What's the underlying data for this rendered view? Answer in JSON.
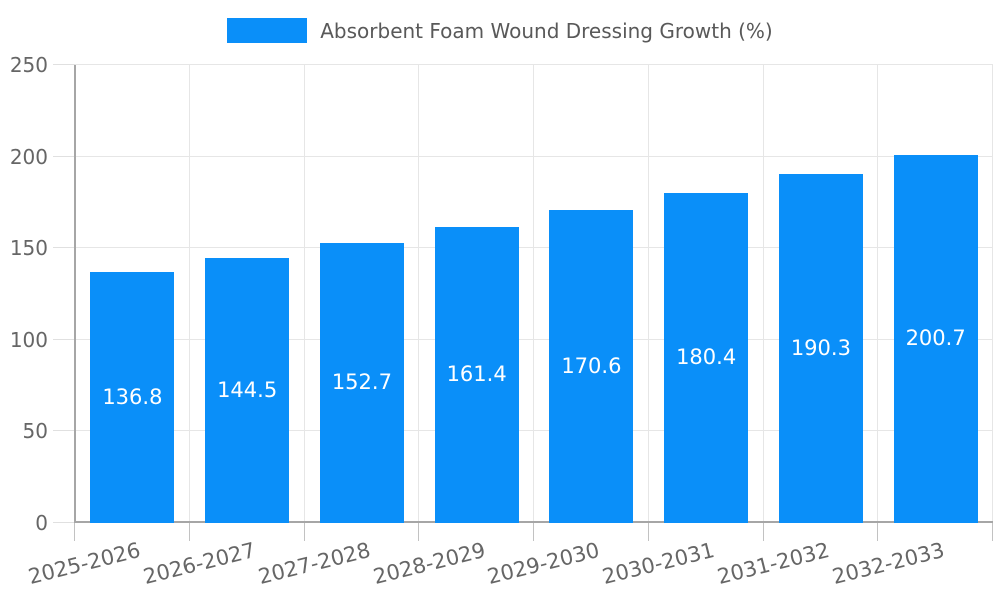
{
  "legend": {
    "label": "Absorbent Foam Wound Dressing Growth (%)"
  },
  "chart_data": {
    "type": "bar",
    "title": "Absorbent Foam Wound Dressing Growth (%)",
    "categories": [
      "2025-2026",
      "2026-2027",
      "2027-2028",
      "2028-2029",
      "2029-2030",
      "2030-2031",
      "2031-2032",
      "2032-2033"
    ],
    "values": [
      136.8,
      144.5,
      152.7,
      161.4,
      170.6,
      180.4,
      190.3,
      200.7
    ],
    "value_labels": [
      "136.8",
      "144.5",
      "152.7",
      "161.4",
      "170.6",
      "180.4",
      "190.3",
      "200.7"
    ],
    "xlabel": "",
    "ylabel": "",
    "ylim": [
      0,
      250
    ],
    "yticks": [
      0,
      50,
      100,
      150,
      200,
      250
    ],
    "grid": true,
    "legend_position": "top-center",
    "value_label_position": "inside-center"
  },
  "colors": {
    "bar": "#0a8ff9",
    "grid": "#e6e6e6",
    "axis": "#a6a6a6",
    "tick_x": "#c2c2c2",
    "tick_y": "#e0e0e0",
    "axis_label": "#666666",
    "legend_text": "#595959",
    "value_label": "#ffffff",
    "background": "#ffffff"
  }
}
